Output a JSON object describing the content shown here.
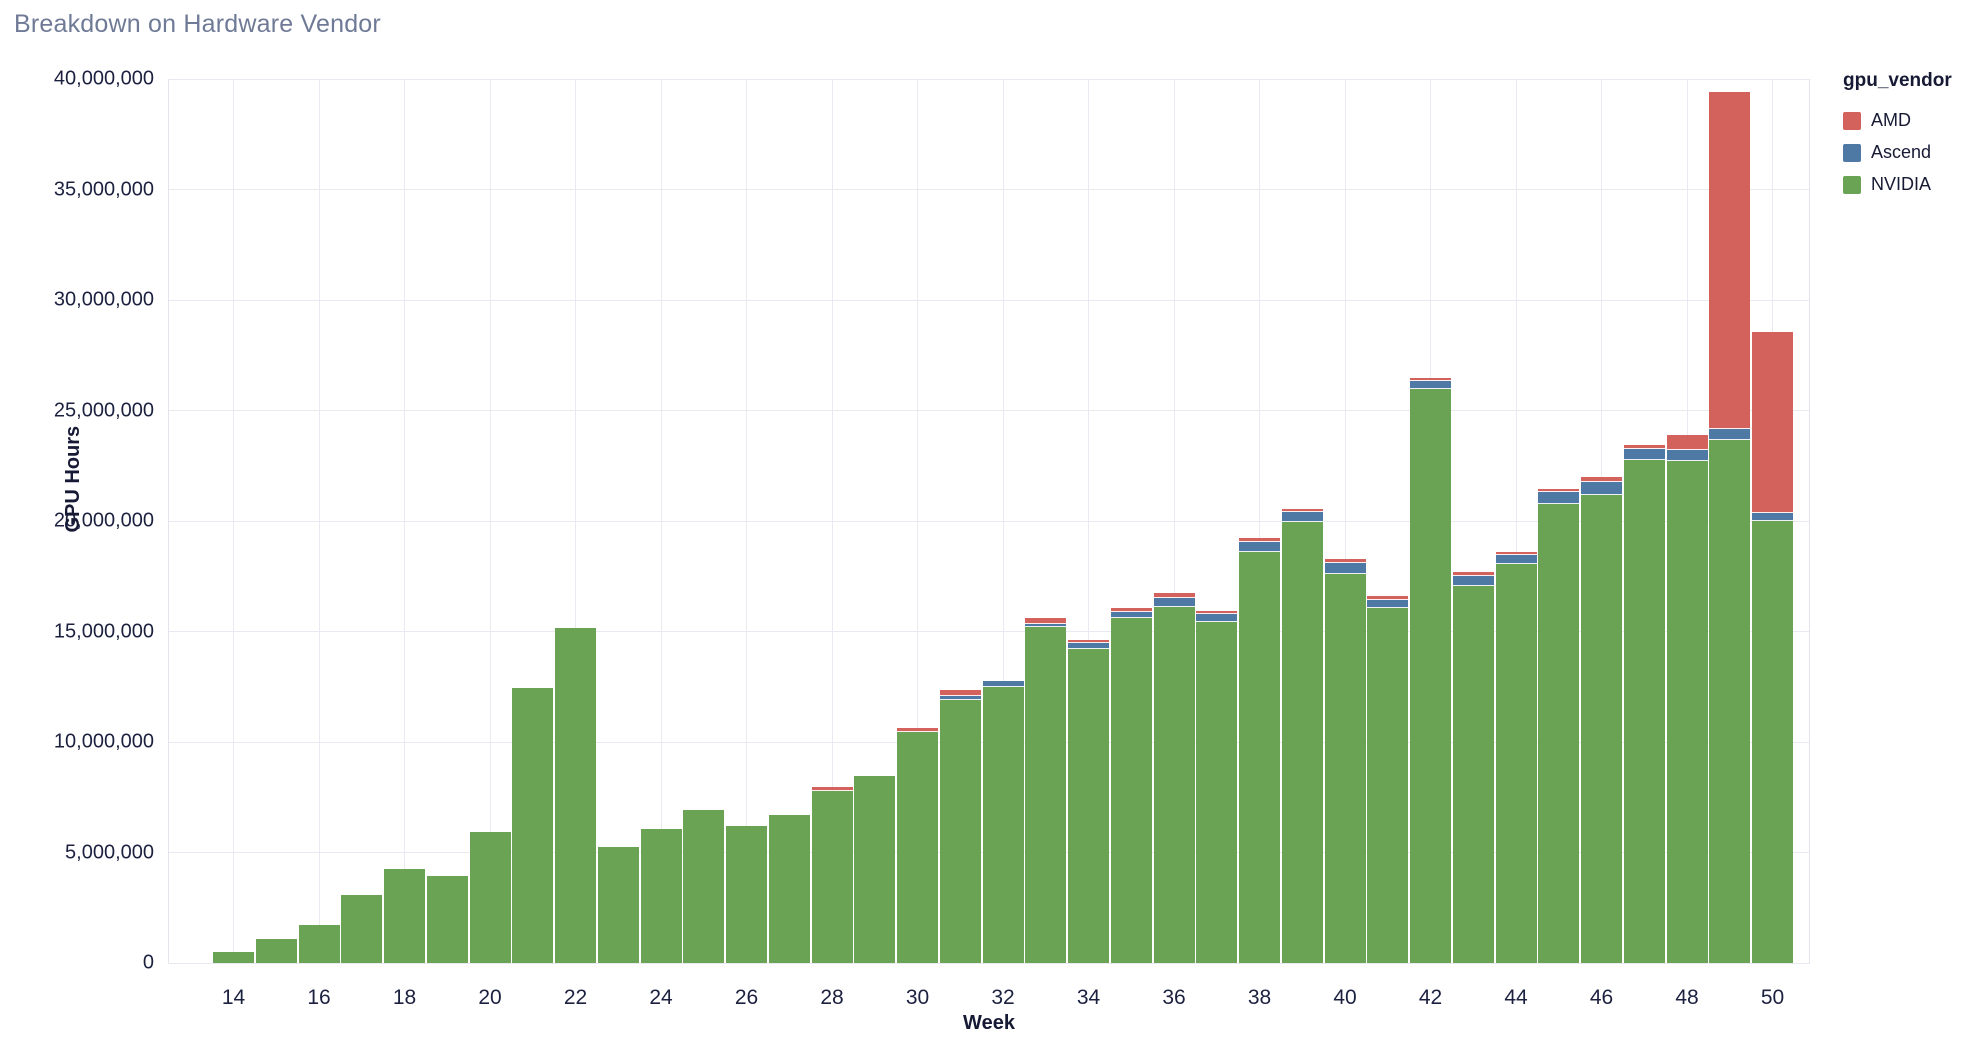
{
  "title": "Breakdown on Hardware Vendor",
  "legend": {
    "title": "gpu_vendor",
    "items": [
      {
        "label": "AMD",
        "color": "#d3615c"
      },
      {
        "label": "Ascend",
        "color": "#4f79a5"
      },
      {
        "label": "NVIDIA",
        "color": "#6aa353"
      }
    ]
  },
  "axes": {
    "x_title": "Week",
    "y_title": "GPU Hours"
  },
  "chart_data": {
    "type": "bar",
    "stacked": true,
    "title": "Breakdown on Hardware Vendor",
    "xlabel": "Week",
    "ylabel": "GPU Hours",
    "grid": true,
    "legend_position": "top-right",
    "ylim": [
      0,
      40000000
    ],
    "y_ticks": [
      0,
      5000000,
      10000000,
      15000000,
      20000000,
      25000000,
      30000000,
      35000000,
      40000000
    ],
    "y_tick_labels": [
      "0",
      "5,000,000",
      "10,000,000",
      "15,000,000",
      "20,000,000",
      "25,000,000",
      "30,000,000",
      "35,000,000",
      "40,000,000"
    ],
    "categories": [
      14,
      15,
      16,
      17,
      18,
      19,
      20,
      21,
      22,
      23,
      24,
      25,
      26,
      27,
      28,
      29,
      30,
      31,
      32,
      33,
      34,
      35,
      36,
      37,
      38,
      39,
      40,
      41,
      42,
      43,
      44,
      45,
      46,
      47,
      48,
      49,
      50
    ],
    "x_tick_labels": [
      "14",
      "16",
      "18",
      "20",
      "22",
      "24",
      "26",
      "28",
      "30",
      "32",
      "34",
      "36",
      "38",
      "40",
      "42",
      "44",
      "46",
      "48",
      "50"
    ],
    "x_tick_weeks": [
      14,
      16,
      18,
      20,
      22,
      24,
      26,
      28,
      30,
      32,
      34,
      36,
      38,
      40,
      42,
      44,
      46,
      48,
      50
    ],
    "stack_order_bottom_to_top": [
      "NVIDIA",
      "Ascend",
      "AMD"
    ],
    "series": [
      {
        "name": "NVIDIA",
        "color": "#6aa353",
        "values": [
          520000,
          1100000,
          1700000,
          3100000,
          4250000,
          3920000,
          5930000,
          12460000,
          15170000,
          5260000,
          6080000,
          6910000,
          6190000,
          6680000,
          7800000,
          8450000,
          10460000,
          11910000,
          12510000,
          15220000,
          14190000,
          15600000,
          16120000,
          15430000,
          18600000,
          19940000,
          17610000,
          16050000,
          25980000,
          17050000,
          18050000,
          20760000,
          21160000,
          22770000,
          22710000,
          23650000,
          20000000
        ]
      },
      {
        "name": "Ascend",
        "color": "#4f79a5",
        "values": [
          0,
          0,
          0,
          0,
          0,
          0,
          0,
          0,
          0,
          0,
          0,
          0,
          0,
          0,
          0,
          0,
          0,
          150000,
          230000,
          140000,
          300000,
          290000,
          380000,
          380000,
          430000,
          460000,
          500000,
          380000,
          350000,
          450000,
          400000,
          550000,
          600000,
          500000,
          490000,
          500000,
          380000
        ]
      },
      {
        "name": "AMD",
        "color": "#d3615c",
        "values": [
          0,
          0,
          0,
          0,
          0,
          0,
          0,
          0,
          0,
          0,
          0,
          0,
          0,
          0,
          180000,
          0,
          180000,
          300000,
          0,
          230000,
          110000,
          170000,
          230000,
          120000,
          180000,
          150000,
          180000,
          180000,
          150000,
          200000,
          150000,
          160000,
          250000,
          180000,
          700000,
          15250000,
          8180000
        ]
      }
    ]
  }
}
